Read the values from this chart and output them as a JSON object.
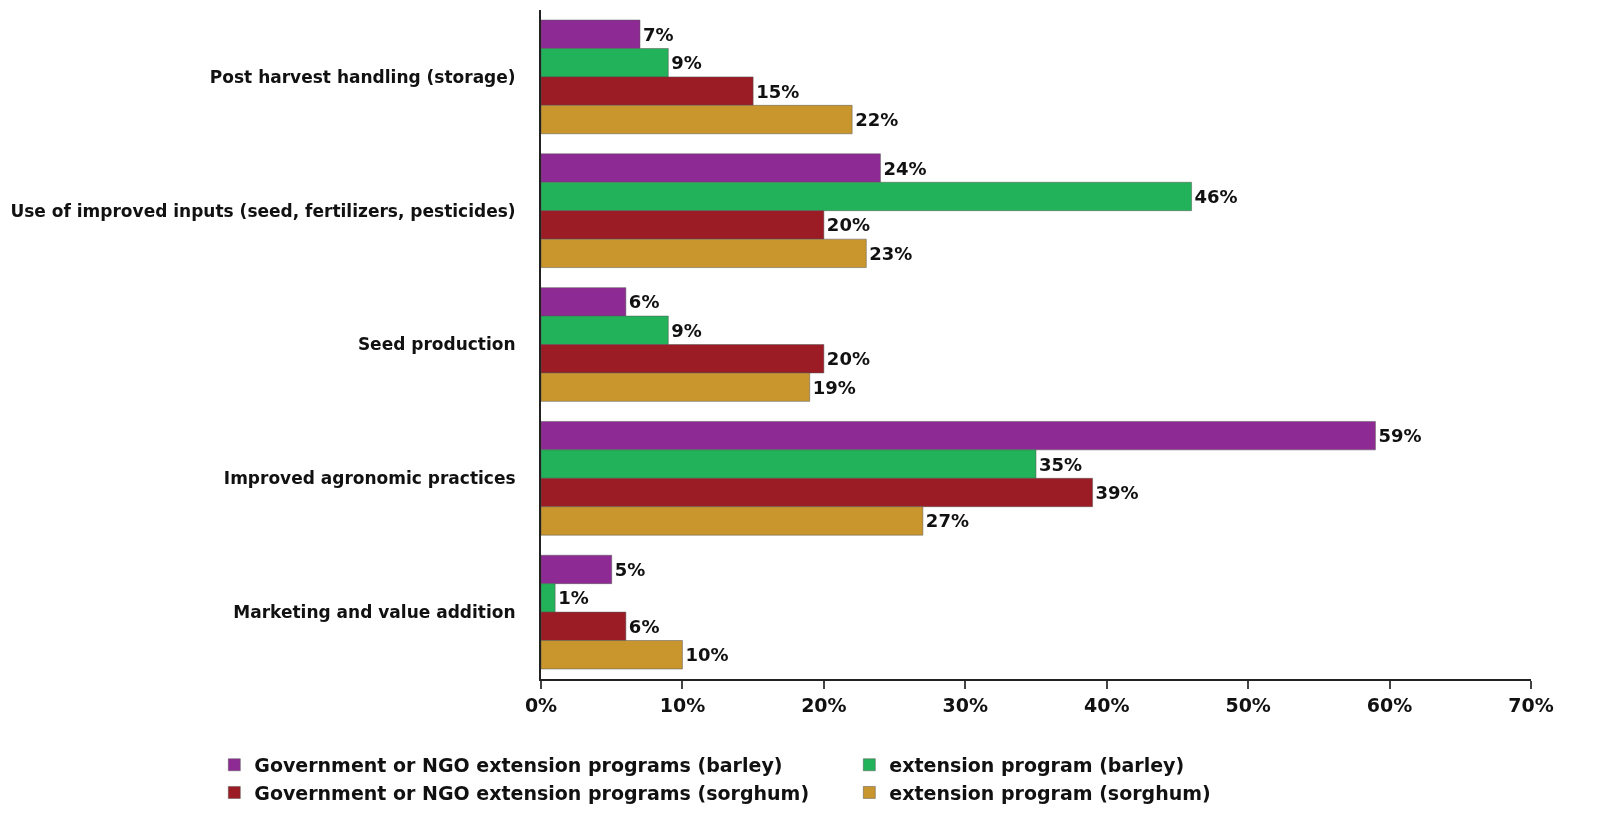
{
  "chart_data": {
    "type": "bar",
    "orientation": "horizontal",
    "categories": [
      "Post harvest handling (storage)",
      "Use of improved inputs (seed, fertilizers, pesticides)",
      "Seed production",
      "Improved agronomic practices",
      "Marketing and value addition"
    ],
    "series": [
      {
        "name": "Government or NGO extension programs (barley)",
        "color": "#8e2a93",
        "values": [
          7,
          24,
          6,
          59,
          5
        ],
        "value_labels": [
          "7%",
          "24%",
          "6%",
          "59%",
          "5%"
        ]
      },
      {
        "name": "extension program (barley)",
        "color": "#22b35a",
        "values": [
          9,
          46,
          9,
          35,
          1
        ],
        "value_labels": [
          "9%",
          "46%",
          "9%",
          "35%",
          "1%"
        ]
      },
      {
        "name": "Government or NGO extension programs (sorghum)",
        "color": "#9b1c24",
        "values": [
          15,
          20,
          20,
          39,
          6
        ],
        "value_labels": [
          "15%",
          "20%",
          "20%",
          "39%",
          "6%"
        ]
      },
      {
        "name": "extension program (sorghum)",
        "color": "#c9962e",
        "values": [
          22,
          23,
          19,
          27,
          10
        ],
        "value_labels": [
          "22%",
          "23%",
          "19%",
          "27%",
          "10%"
        ]
      }
    ],
    "xlim": [
      0,
      70
    ],
    "xticks": [
      {
        "value": 0,
        "label": "0%"
      },
      {
        "value": 10,
        "label": "10%"
      },
      {
        "value": 20,
        "label": "20%"
      },
      {
        "value": 30,
        "label": "30%"
      },
      {
        "value": 40,
        "label": "40%"
      },
      {
        "value": 50,
        "label": "50%"
      },
      {
        "value": 60,
        "label": "60%"
      },
      {
        "value": 70,
        "label": "70%"
      }
    ],
    "grid": false,
    "legend": "bottom"
  }
}
